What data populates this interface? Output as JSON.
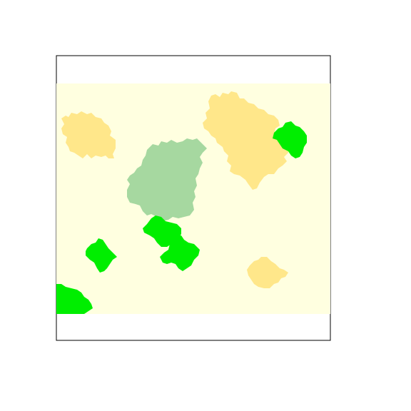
{
  "map": {
    "colors": {
      "background": "#ffffff",
      "frame": "#000000",
      "base_land": "#ffffe0",
      "sandy_patch": "#ffe78a",
      "muted_green_patch": "#a6d8a0",
      "bright_green_patch": "#00ee00"
    },
    "legend": [],
    "title": "",
    "patches": [
      {
        "id": "sandy-patch-west",
        "kind": "sandy_patch"
      },
      {
        "id": "sandy-patch-northeast",
        "kind": "sandy_patch"
      },
      {
        "id": "sandy-patch-southeast",
        "kind": "sandy_patch"
      },
      {
        "id": "muted-green-patch-center",
        "kind": "muted_green_patch"
      },
      {
        "id": "bright-green-patch-east",
        "kind": "bright_green_patch"
      },
      {
        "id": "bright-green-patch-center-a",
        "kind": "bright_green_patch"
      },
      {
        "id": "bright-green-patch-center-b",
        "kind": "bright_green_patch"
      },
      {
        "id": "bright-green-patch-west",
        "kind": "bright_green_patch"
      },
      {
        "id": "bright-green-patch-southwest",
        "kind": "bright_green_patch"
      }
    ]
  }
}
